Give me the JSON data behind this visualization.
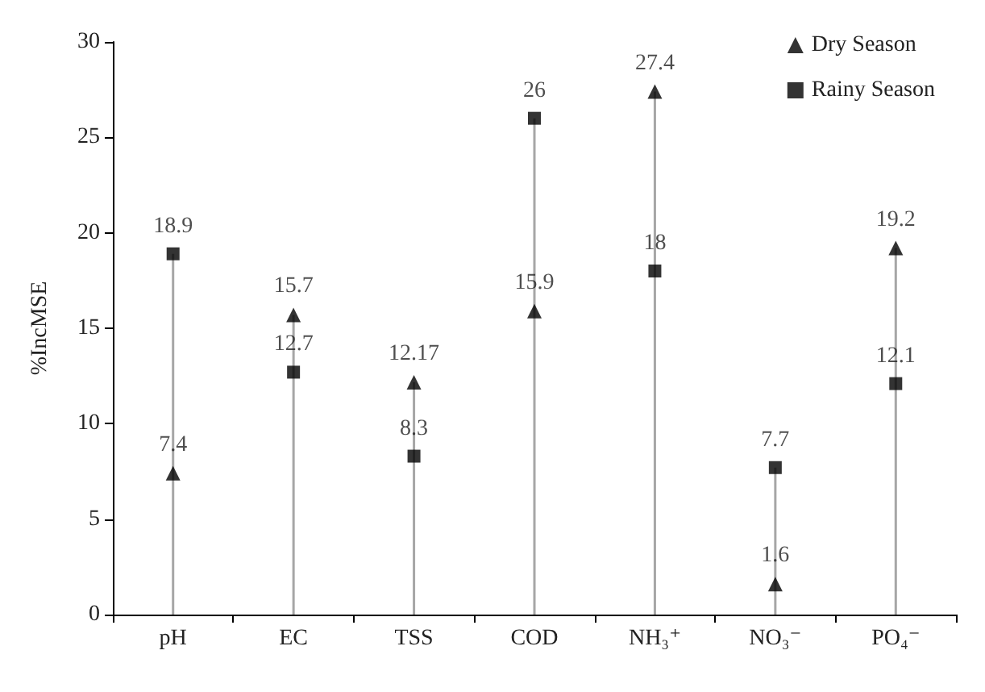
{
  "chart_data": {
    "type": "lollipop",
    "ylabel": "%IncMSE",
    "categories": [
      "pH",
      "EC",
      "TSS",
      "COD",
      "NH₃⁺",
      "NO₃⁻",
      "PO₄⁻"
    ],
    "series": [
      {
        "name": "Dry Season",
        "color": "#000000",
        "marker": "triangle",
        "values": [
          7.4,
          15.7,
          12.17,
          15.9,
          27.4,
          1.6,
          19.2
        ]
      },
      {
        "name": "Rainy Season",
        "color": "#000000",
        "marker": "square",
        "values": [
          18.9,
          12.7,
          8.3,
          26,
          18,
          7.7,
          12.1
        ]
      }
    ],
    "ylim": [
      0,
      30
    ],
    "yticks": [
      0,
      5,
      10,
      15,
      20,
      25,
      30
    ],
    "legend": "top right",
    "data_labels": true
  }
}
